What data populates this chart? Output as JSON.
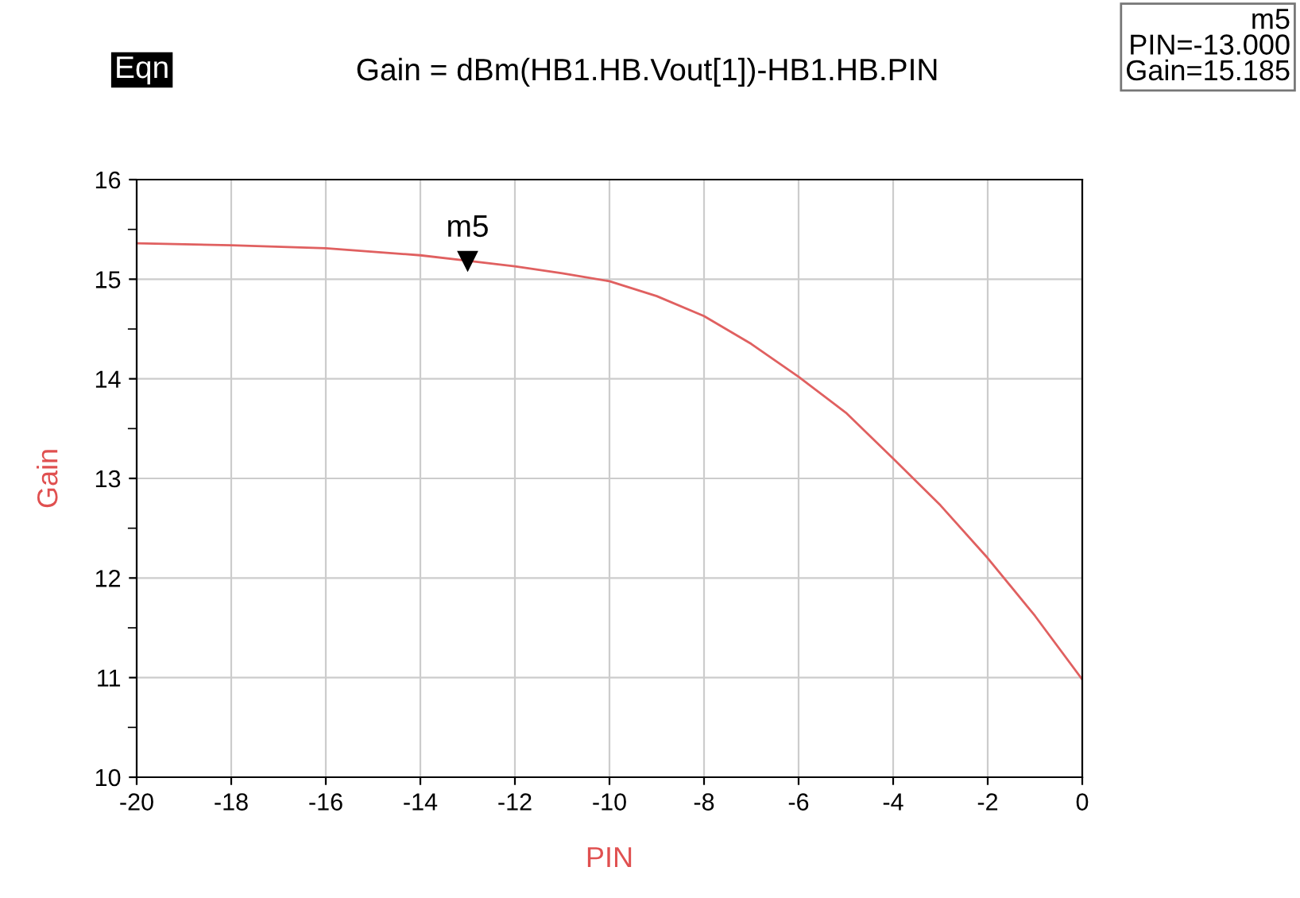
{
  "chart_data": {
    "type": "line",
    "title": "Gain = dBm(HB1.HB.Vout[1])-HB1.HB.PIN",
    "xlabel": "PIN",
    "ylabel": "Gain",
    "x": [
      -20,
      -18,
      -16,
      -14,
      -13,
      -12,
      -11,
      -10,
      -9,
      -8,
      -7,
      -6,
      -5,
      -4,
      -3,
      -2,
      -1,
      0
    ],
    "series": [
      {
        "color": "#e06060",
        "values": [
          15.36,
          15.34,
          15.31,
          15.24,
          15.185,
          15.13,
          15.06,
          14.98,
          14.83,
          14.63,
          14.35,
          14.02,
          13.66,
          13.2,
          12.73,
          12.2,
          11.62,
          10.98
        ]
      }
    ],
    "xlim": [
      -20,
      0
    ],
    "ylim": [
      10,
      16
    ],
    "xticks": [
      -20,
      -18,
      -16,
      -14,
      -12,
      -10,
      -8,
      -6,
      -4,
      -2,
      0
    ],
    "yticks": [
      10,
      11,
      12,
      13,
      14,
      15,
      16
    ],
    "grid": true,
    "marker": "none",
    "line_style": "solid",
    "annotations": [
      "Eqn",
      {
        "text": "m5",
        "x": -13,
        "y": 15.185
      },
      "m5\nPIN=-13.000\nGain=15.185"
    ]
  }
}
